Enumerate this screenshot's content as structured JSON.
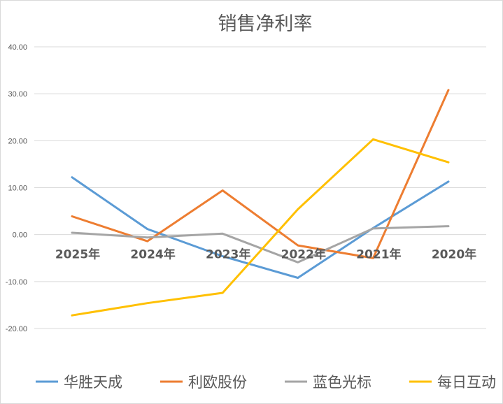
{
  "chart_data": {
    "type": "line",
    "title": "销售净利率",
    "xlabel": "",
    "ylabel": "",
    "categories": [
      "2025年",
      "2024年",
      "2023年",
      "2022年",
      "2021年",
      "2020年"
    ],
    "ylim": [
      -20,
      40
    ],
    "yticks": [
      -20,
      -10,
      0,
      10,
      20,
      30,
      40
    ],
    "ytick_labels": [
      "-20.00",
      "-10.00",
      "0.00",
      "10.00",
      "20.00",
      "30.00",
      "40.00"
    ],
    "grid": true,
    "legend_position": "bottom",
    "series": [
      {
        "name": "华胜天成",
        "color": "#5b9bd5",
        "values": [
          12.2,
          1.2,
          -4.6,
          -9.2,
          1.4,
          11.3
        ]
      },
      {
        "name": "利欧股份",
        "color": "#ed7d31",
        "values": [
          3.9,
          -1.4,
          9.4,
          -2.3,
          -5.0,
          30.8
        ]
      },
      {
        "name": "蓝色光标",
        "color": "#a5a5a5",
        "values": [
          0.4,
          -0.6,
          0.2,
          -5.9,
          1.3,
          1.8
        ]
      },
      {
        "name": "每日互动",
        "color": "#ffc000",
        "values": [
          -17.2,
          -14.6,
          -12.4,
          5.4,
          20.3,
          15.4
        ]
      }
    ]
  }
}
